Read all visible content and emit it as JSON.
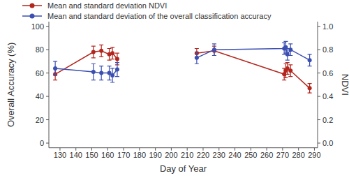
{
  "chart_data": {
    "type": "line",
    "x_label": "Day of Year",
    "y_label": "Overall Accuracy (%)",
    "y2_label": "NDVI",
    "x": [
      127,
      151,
      156,
      161,
      163,
      166,
      null,
      216,
      227,
      271,
      272,
      273,
      275,
      287
    ],
    "xlim": [
      123,
      292
    ],
    "xticks": [
      130,
      140,
      150,
      160,
      170,
      180,
      190,
      200,
      210,
      220,
      230,
      240,
      250,
      260,
      270,
      280,
      290
    ],
    "ylim": [
      -4,
      104
    ],
    "yticks": [
      0,
      20,
      40,
      60,
      80,
      100
    ],
    "y2lim": [
      -0.04,
      1.04
    ],
    "y2ticks": [
      {
        "value": 0,
        "label": "0.0"
      },
      0.2,
      0.4,
      0.6,
      0.8,
      {
        "value": 1,
        "label": "1.0"
      }
    ],
    "legend": "top-left",
    "series": [
      {
        "name": "Mean and standard deviation NDVI",
        "color": "#b3261e",
        "axis": "y2",
        "marker": "circle",
        "values": [
          0.59,
          0.78,
          0.79,
          0.76,
          0.77,
          0.72,
          null,
          0.77,
          0.79,
          0.59,
          0.62,
          0.64,
          0.62,
          0.47
        ],
        "errors": [
          0.05,
          0.05,
          0.05,
          0.05,
          0.05,
          0.05,
          null,
          0.04,
          0.04,
          0.05,
          0.06,
          0.05,
          0.05,
          0.04
        ]
      },
      {
        "name": "Mean and standard deviation of the overall classification accuracy",
        "color": "#3b4fb2",
        "marker": "circle",
        "values": [
          64,
          61,
          60,
          60,
          58,
          63,
          null,
          73,
          80,
          81,
          82,
          76,
          80,
          71
        ],
        "errors": [
          6,
          7,
          6,
          6,
          6,
          6,
          null,
          5,
          5,
          5,
          5,
          5,
          5,
          5
        ]
      }
    ]
  }
}
